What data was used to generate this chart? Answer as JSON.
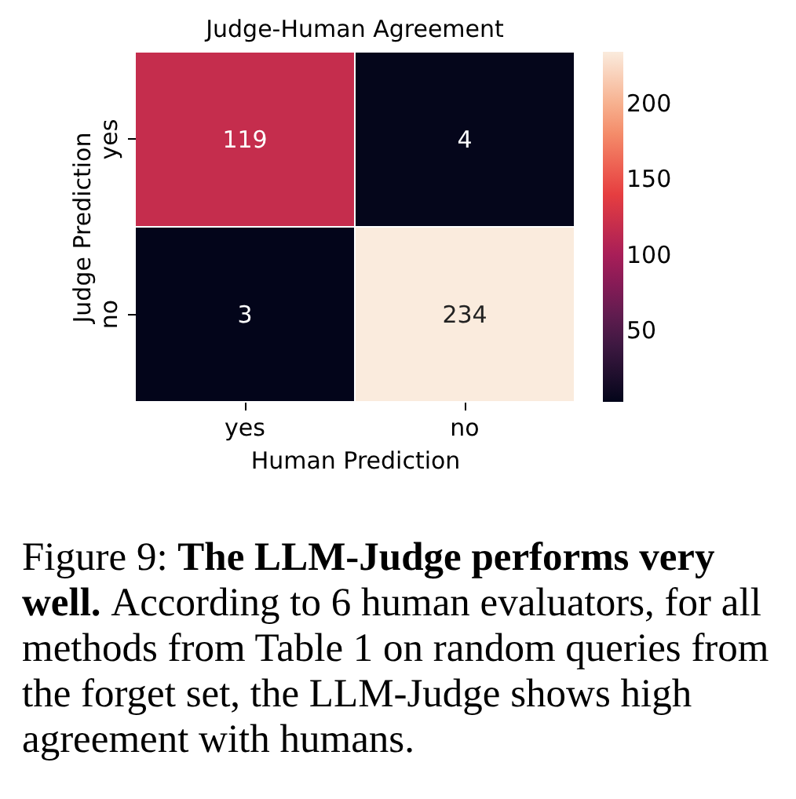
{
  "chart_data": {
    "type": "heatmap",
    "title": "Judge-Human Agreement",
    "xlabel": "Human Prediction",
    "ylabel": "Judge Prediction",
    "categories": [
      "yes",
      "no"
    ],
    "y_categories": [
      "yes",
      "no"
    ],
    "cells": [
      [
        119,
        4
      ],
      [
        3,
        234
      ]
    ],
    "clim": [
      3,
      234
    ],
    "cticks": [
      50,
      100,
      150,
      200
    ],
    "data_labels": true,
    "annotations": [
      "Figure 9:",
      "The LLM-Judge performs very well.",
      "According to 6 human evaluators, for all methods from Table 1 on random queries from the forget set, the LLM-Judge shows high agreement with humans."
    ]
  }
}
